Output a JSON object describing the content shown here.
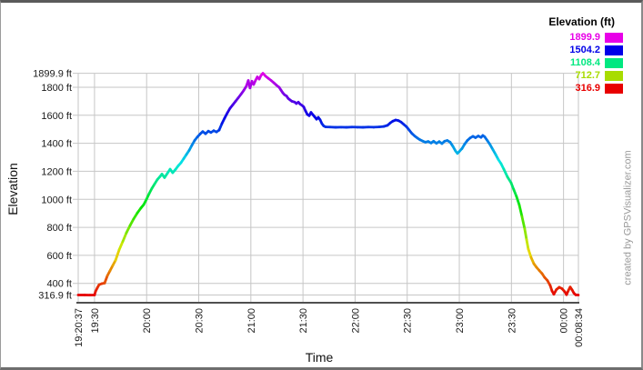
{
  "watermark": "created by GPSVisualizer.com",
  "legend": {
    "title": "Elevation (ft)",
    "entries": [
      {
        "label": "1899.9",
        "color": "#e800e8"
      },
      {
        "label": "1504.2",
        "color": "#0000e8"
      },
      {
        "label": "1108.4",
        "color": "#00e880"
      },
      {
        "label": "712.7",
        "color": "#a8dc00"
      },
      {
        "label": "316.9",
        "color": "#e80000"
      }
    ]
  },
  "chart_data": {
    "type": "line",
    "xlabel": "Time",
    "ylabel": "Elevation",
    "y_unit": "ft",
    "y_min": 316.9,
    "y_max": 1899.9,
    "x_start_label": "19:20:37",
    "x_end_label": "00:08:34",
    "duration_min": 287.95,
    "grid": true,
    "legend_position": "top-right",
    "colors": {
      "grid": "#c6c6c6",
      "axis": "#4f4f4f",
      "tick_text": "#1a1a1a"
    },
    "y_ticks": [
      {
        "v": 1899.9,
        "label": "1899.9 ft"
      },
      {
        "v": 1800,
        "label": "1800 ft"
      },
      {
        "v": 1600,
        "label": "1600 ft"
      },
      {
        "v": 1400,
        "label": "1400 ft"
      },
      {
        "v": 1200,
        "label": "1200 ft"
      },
      {
        "v": 1000,
        "label": "1000 ft"
      },
      {
        "v": 800,
        "label": "800 ft"
      },
      {
        "v": 600,
        "label": "600 ft"
      },
      {
        "v": 400,
        "label": "400 ft"
      },
      {
        "v": 316.9,
        "label": "316.9 ft"
      }
    ],
    "x_ticks": [
      {
        "t": 0,
        "label": "19:20:37"
      },
      {
        "t": 9.38,
        "label": "19:30"
      },
      {
        "t": 39.38,
        "label": "20:00"
      },
      {
        "t": 69.38,
        "label": "20:30"
      },
      {
        "t": 99.38,
        "label": "21:00"
      },
      {
        "t": 129.38,
        "label": "21:30"
      },
      {
        "t": 159.38,
        "label": "22:00"
      },
      {
        "t": 189.38,
        "label": "22:30"
      },
      {
        "t": 219.38,
        "label": "23:00"
      },
      {
        "t": 249.38,
        "label": "23:30"
      },
      {
        "t": 279.38,
        "label": "00:00"
      },
      {
        "t": 287.95,
        "label": "00:08:34"
      }
    ],
    "series": [
      {
        "name": "Elevation (ft)",
        "color_mode": "rainbow-by-elevation",
        "points": [
          [
            0,
            317
          ],
          [
            3.7,
            317
          ],
          [
            6.8,
            316
          ],
          [
            9.4,
            317
          ],
          [
            9.9,
            340
          ],
          [
            11,
            368
          ],
          [
            12,
            390
          ],
          [
            13.6,
            398
          ],
          [
            15.2,
            402
          ],
          [
            16.8,
            455
          ],
          [
            18.3,
            490
          ],
          [
            19.9,
            528
          ],
          [
            21.5,
            565
          ],
          [
            23.6,
            640
          ],
          [
            25.7,
            700
          ],
          [
            27.7,
            760
          ],
          [
            29.8,
            812
          ],
          [
            31.9,
            860
          ],
          [
            34,
            902
          ],
          [
            36.1,
            938
          ],
          [
            37.7,
            962
          ],
          [
            39.3,
            1000
          ],
          [
            40.8,
            1040
          ],
          [
            42.4,
            1078
          ],
          [
            44,
            1110
          ],
          [
            45.5,
            1140
          ],
          [
            47.1,
            1163
          ],
          [
            48.2,
            1180
          ],
          [
            49.7,
            1155
          ],
          [
            51.3,
            1185
          ],
          [
            52.9,
            1215
          ],
          [
            54.4,
            1190
          ],
          [
            56,
            1213
          ],
          [
            57.6,
            1240
          ],
          [
            59.2,
            1262
          ],
          [
            60.7,
            1290
          ],
          [
            62.3,
            1320
          ],
          [
            63.9,
            1350
          ],
          [
            65.4,
            1385
          ],
          [
            67,
            1420
          ],
          [
            68.6,
            1445
          ],
          [
            70.2,
            1467
          ],
          [
            71.7,
            1484
          ],
          [
            73.3,
            1468
          ],
          [
            74.9,
            1487
          ],
          [
            76.4,
            1477
          ],
          [
            78,
            1490
          ],
          [
            79.6,
            1481
          ],
          [
            81.1,
            1494
          ],
          [
            82.7,
            1540
          ],
          [
            84.3,
            1580
          ],
          [
            85.9,
            1618
          ],
          [
            87.4,
            1650
          ],
          [
            89,
            1675
          ],
          [
            90.6,
            1700
          ],
          [
            92.1,
            1724
          ],
          [
            93.7,
            1750
          ],
          [
            95.3,
            1778
          ],
          [
            96.8,
            1808
          ],
          [
            97.9,
            1848
          ],
          [
            98.9,
            1795
          ],
          [
            100,
            1843
          ],
          [
            101,
            1820
          ],
          [
            102.1,
            1850
          ],
          [
            103.1,
            1874
          ],
          [
            104.2,
            1858
          ],
          [
            105.2,
            1884
          ],
          [
            106.3,
            1899.9
          ],
          [
            107.8,
            1880
          ],
          [
            109.4,
            1864
          ],
          [
            111,
            1849
          ],
          [
            112.6,
            1832
          ],
          [
            114.1,
            1815
          ],
          [
            115.7,
            1799
          ],
          [
            116.7,
            1780
          ],
          [
            117.8,
            1760
          ],
          [
            118.8,
            1746
          ],
          [
            119.9,
            1738
          ],
          [
            120.9,
            1720
          ],
          [
            122,
            1709
          ],
          [
            123,
            1700
          ],
          [
            124.6,
            1694
          ],
          [
            125.6,
            1684
          ],
          [
            126.7,
            1694
          ],
          [
            127.7,
            1680
          ],
          [
            128.8,
            1671
          ],
          [
            129.8,
            1660
          ],
          [
            130.9,
            1630
          ],
          [
            131.9,
            1606
          ],
          [
            133,
            1597
          ],
          [
            134,
            1621
          ],
          [
            135.1,
            1604
          ],
          [
            136.1,
            1589
          ],
          [
            137.2,
            1572
          ],
          [
            138.2,
            1585
          ],
          [
            139.2,
            1569
          ],
          [
            140.3,
            1540
          ],
          [
            141.3,
            1524
          ],
          [
            142.4,
            1517
          ],
          [
            145,
            1516
          ],
          [
            148.2,
            1514
          ],
          [
            151.3,
            1515
          ],
          [
            154.4,
            1514
          ],
          [
            157.6,
            1516
          ],
          [
            160.7,
            1515
          ],
          [
            163.9,
            1514
          ],
          [
            167,
            1516
          ],
          [
            170.1,
            1515
          ],
          [
            173.3,
            1517
          ],
          [
            175.9,
            1520
          ],
          [
            178,
            1528
          ],
          [
            179.6,
            1545
          ],
          [
            181.1,
            1558
          ],
          [
            182.7,
            1566
          ],
          [
            184.3,
            1562
          ],
          [
            185.8,
            1552
          ],
          [
            187.4,
            1535
          ],
          [
            189,
            1518
          ],
          [
            190.5,
            1495
          ],
          [
            192.1,
            1470
          ],
          [
            193.7,
            1452
          ],
          [
            195.2,
            1438
          ],
          [
            196.8,
            1425
          ],
          [
            198.4,
            1415
          ],
          [
            199.9,
            1408
          ],
          [
            201.5,
            1413
          ],
          [
            203.1,
            1402
          ],
          [
            204.6,
            1415
          ],
          [
            206.2,
            1400
          ],
          [
            207.8,
            1412
          ],
          [
            209.4,
            1398
          ],
          [
            210.9,
            1415
          ],
          [
            212.5,
            1420
          ],
          [
            214.1,
            1408
          ],
          [
            215.6,
            1380
          ],
          [
            217.2,
            1345
          ],
          [
            218.3,
            1328
          ],
          [
            219.3,
            1340
          ],
          [
            220.9,
            1362
          ],
          [
            222.5,
            1395
          ],
          [
            224,
            1420
          ],
          [
            225.6,
            1438
          ],
          [
            227.2,
            1450
          ],
          [
            228.7,
            1440
          ],
          [
            230.3,
            1452
          ],
          [
            231.9,
            1442
          ],
          [
            232.9,
            1456
          ],
          [
            234,
            1446
          ],
          [
            235.5,
            1420
          ],
          [
            237.1,
            1390
          ],
          [
            238.7,
            1355
          ],
          [
            240.3,
            1320
          ],
          [
            241.8,
            1285
          ],
          [
            243.4,
            1255
          ],
          [
            245,
            1215
          ],
          [
            247.1,
            1160
          ],
          [
            249.2,
            1118
          ],
          [
            250.7,
            1070
          ],
          [
            252.3,
            1020
          ],
          [
            253.9,
            960
          ],
          [
            255.4,
            880
          ],
          [
            257,
            790
          ],
          [
            258.1,
            712
          ],
          [
            259.1,
            645
          ],
          [
            260.7,
            585
          ],
          [
            262.3,
            540
          ],
          [
            263.8,
            515
          ],
          [
            265.4,
            492
          ],
          [
            267,
            470
          ],
          [
            268.5,
            442
          ],
          [
            270.1,
            420
          ],
          [
            271.7,
            385
          ],
          [
            272.7,
            347
          ],
          [
            273.8,
            322
          ],
          [
            275.3,
            356
          ],
          [
            276.9,
            372
          ],
          [
            278.5,
            362
          ],
          [
            280.1,
            340
          ],
          [
            281.1,
            319
          ],
          [
            282.2,
            350
          ],
          [
            283.2,
            374
          ],
          [
            284.3,
            354
          ],
          [
            285.3,
            331
          ],
          [
            286.4,
            318
          ],
          [
            287.9,
            316.9
          ]
        ]
      }
    ]
  }
}
